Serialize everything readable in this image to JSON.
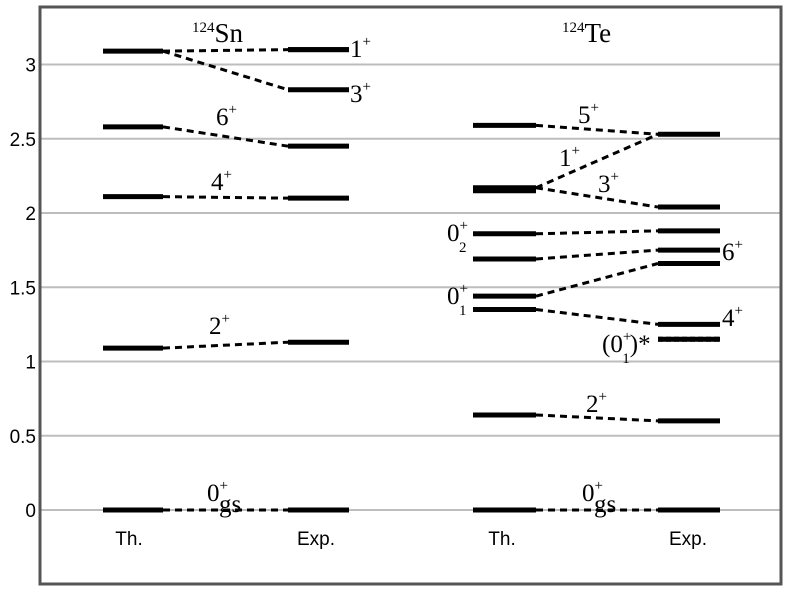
{
  "chart_data": {
    "type": "level-scheme",
    "ylim": [
      0,
      3.3
    ],
    "yticks": [
      "0",
      "0.5",
      "1",
      "1.5",
      "2",
      "2.5",
      "3"
    ],
    "grid": true,
    "panels": [
      {
        "nucleus_mass": "124",
        "nucleus_symbol": "Sn",
        "columns": [
          "Th.",
          "Exp."
        ],
        "theory": [
          0,
          1.09,
          2.11,
          2.58,
          3.09
        ],
        "experiment": [
          0,
          1.13,
          2.1,
          2.45,
          2.83,
          3.1,
          3.1
        ],
        "links": [
          {
            "th": 0,
            "exp": 0,
            "label": "0",
            "sup": "+",
            "sub": "gs"
          },
          {
            "th": 1.09,
            "exp": 1.13,
            "label": "2",
            "sup": "+",
            "sub": ""
          },
          {
            "th": 2.11,
            "exp": 2.1,
            "label": "4",
            "sup": "+",
            "sub": ""
          },
          {
            "th": 2.58,
            "exp": 2.45,
            "label": "6",
            "sup": "+",
            "sub": ""
          },
          {
            "th": 3.09,
            "exp": 2.83,
            "label": "3",
            "sup": "+",
            "sub": ""
          },
          {
            "th": 3.09,
            "exp": 3.1,
            "label": "1",
            "sup": "+",
            "sub": ""
          }
        ]
      },
      {
        "nucleus_mass": "124",
        "nucleus_symbol": "Te",
        "columns": [
          "Th.",
          "Exp."
        ],
        "theory": [
          0,
          0.64,
          1.35,
          1.44,
          1.69,
          1.86,
          2.15,
          2.17,
          2.59
        ],
        "experiment": [
          0,
          0.6,
          1.15,
          1.25,
          1.66,
          1.75,
          1.88,
          2.04,
          2.53
        ],
        "links": [
          {
            "th": 0,
            "exp": 0,
            "label": "0",
            "sup": "+",
            "sub": "gs"
          },
          {
            "th": 0.64,
            "exp": 0.6,
            "label": "2",
            "sup": "+",
            "sub": ""
          },
          {
            "th": 1.35,
            "exp": 1.25,
            "label": "4",
            "sup": "+",
            "sub": ""
          },
          {
            "th": 1.44,
            "exp": 1.66,
            "label": "0",
            "sup": "+",
            "sub": "1"
          },
          {
            "th": 1.69,
            "exp": 1.75,
            "label": "6",
            "sup": "+",
            "sub": ""
          },
          {
            "th": 1.86,
            "exp": 1.88,
            "label": "0",
            "sup": "+",
            "sub": "2"
          },
          {
            "th": 2.17,
            "exp": 2.04,
            "label": "3",
            "sup": "+",
            "sub": ""
          },
          {
            "th": 2.17,
            "exp": 2.53,
            "label": "1",
            "sup": "+",
            "sub": ""
          },
          {
            "th": 2.59,
            "exp": 2.53,
            "label": "5",
            "sup": "+",
            "sub": ""
          }
        ],
        "dotted_experiment": {
          "value": 1.15,
          "label": "(0",
          "sup": "+",
          "sub": "1",
          "suffix": ")*"
        }
      }
    ]
  }
}
